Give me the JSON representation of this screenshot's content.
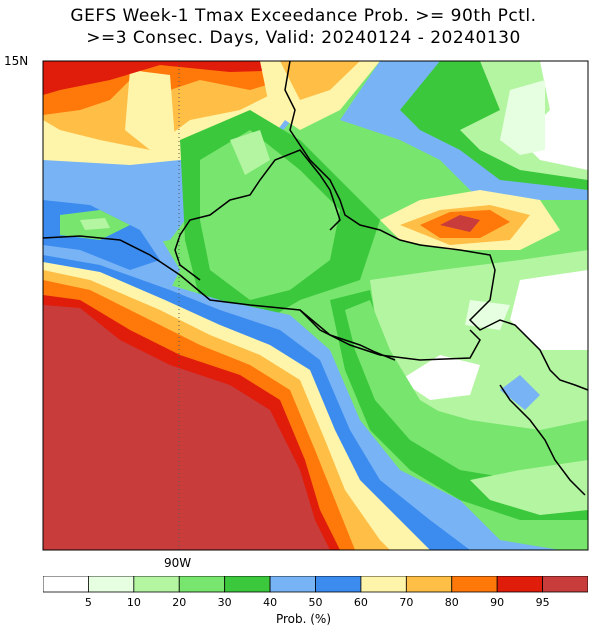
{
  "title_line1": "GEFS Week-1 Tmax Exceedance Prob. >= 90th Pctl.",
  "title_line2": ">=3 Consec. Days, Valid: 20240124 - 20240130",
  "lat_label": "15N",
  "lon_label": "90W",
  "colorbar": {
    "title": "Prob. (%)",
    "tick_labels": [
      "5",
      "10",
      "20",
      "30",
      "40",
      "50",
      "60",
      "70",
      "80",
      "90",
      "95"
    ],
    "colors": [
      "#ffffff",
      "#e6ffe0",
      "#b4f5a2",
      "#78e66e",
      "#3cc83c",
      "#78b4f5",
      "#3c8cf0",
      "#fff5aa",
      "#ffbe46",
      "#ff780a",
      "#e01c0a",
      "#c83c3c"
    ]
  }
}
